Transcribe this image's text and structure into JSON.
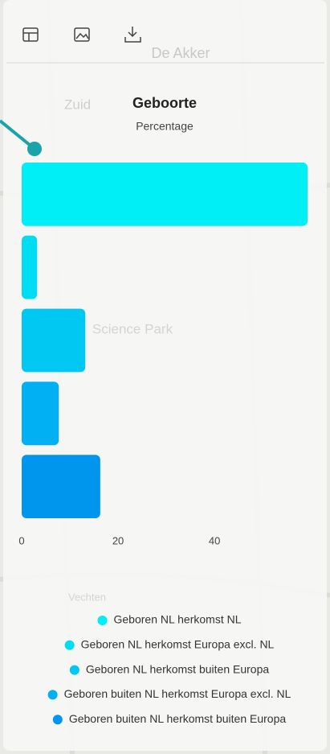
{
  "map": {
    "labels": [
      "De Akker",
      "Zuid",
      "Science Park",
      "Vechten"
    ]
  },
  "chart_data": {
    "type": "bar",
    "orientation": "horizontal",
    "title": "Geboorte",
    "subtitle": "Percentage",
    "series": [
      {
        "name": "Geboren NL herkomst NL",
        "color": "#00eef6",
        "values": [
          59.3
        ]
      },
      {
        "name": "Geboren NL herkomst Europa excl. NL",
        "color": "#00dcf2",
        "values": [
          3.2
        ]
      },
      {
        "name": "Geboren NL herkomst buiten Europa",
        "color": "#00c8f2",
        "values": [
          13.2
        ]
      },
      {
        "name": "Geboren buiten NL herkomst Europa excl. NL",
        "color": "#00b0f2",
        "values": [
          7.7
        ]
      },
      {
        "name": "Geboren buiten NL herkomst buiten Europa",
        "color": "#0096ee",
        "values": [
          16.3
        ]
      }
    ],
    "xlim": [
      0,
      59.3
    ],
    "xticks": [
      0,
      20,
      40
    ],
    "grid": false,
    "legend": "bottom"
  }
}
